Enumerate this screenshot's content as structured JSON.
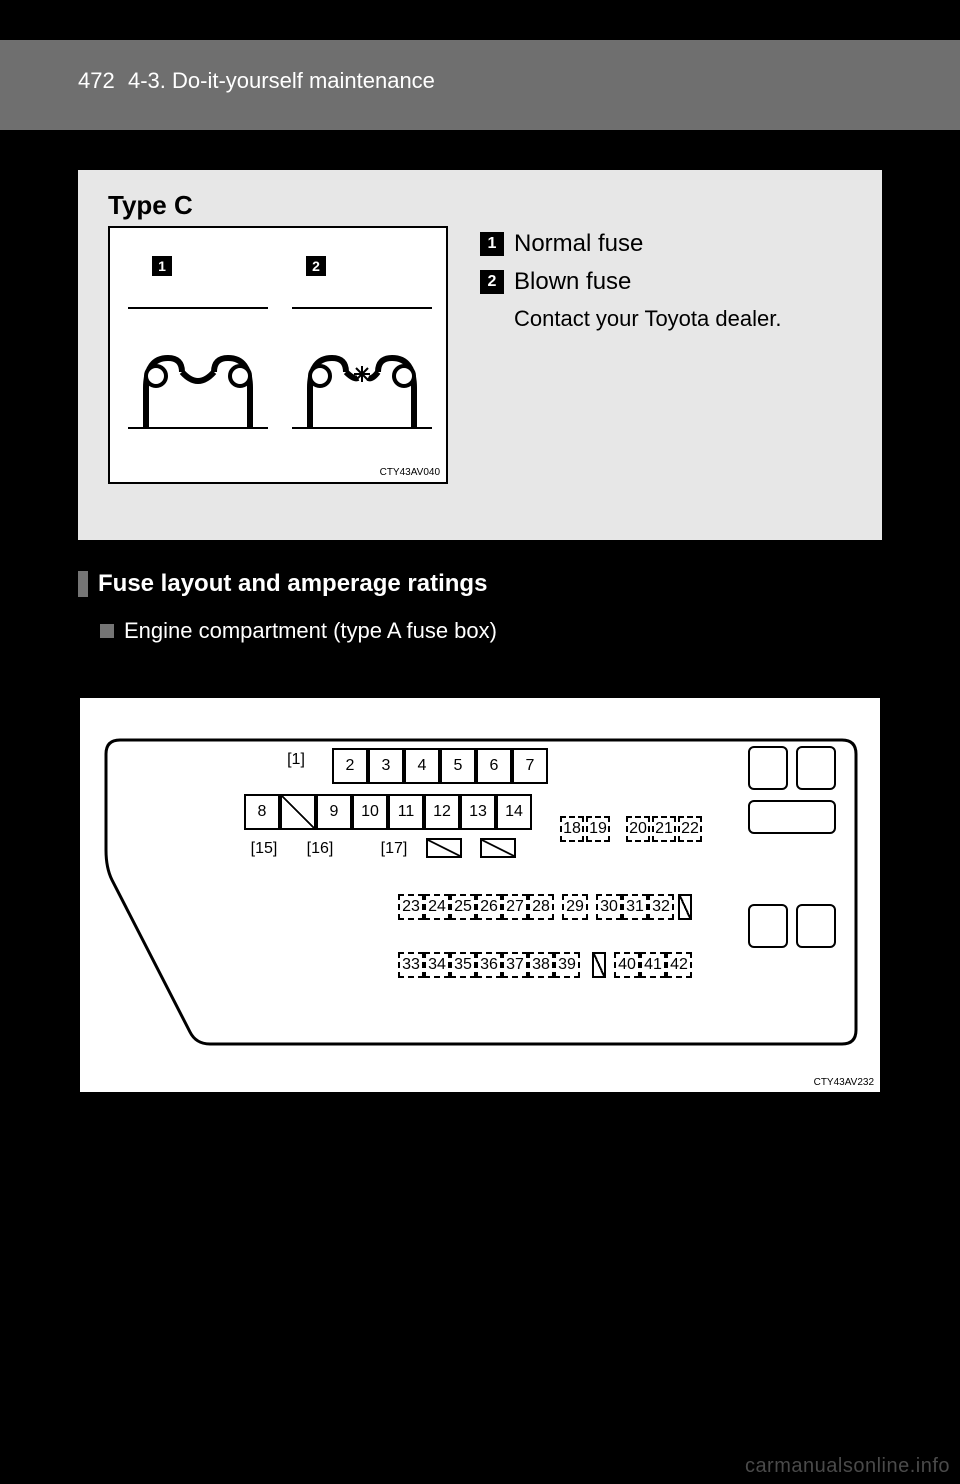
{
  "header": {
    "page_number": "472",
    "section": "4-3. Do-it-yourself maintenance"
  },
  "typec": {
    "title": "Type C",
    "image_code": "CTY43AV040",
    "badges": {
      "one": "1",
      "two": "2"
    },
    "legend": {
      "row1": {
        "badge": "1",
        "text": "Normal fuse"
      },
      "row2": {
        "badge": "2",
        "text": "Blown fuse"
      },
      "note": "Contact your Toyota dealer."
    }
  },
  "mid": {
    "heading": "Fuse layout and amperage ratings"
  },
  "sub": {
    "heading": "Engine compartment (type A fuse box)"
  },
  "fusebox": {
    "image_code": "CTY43AV232",
    "brackets": {
      "b1": "1",
      "b15": "15",
      "b16": "16",
      "b17": "17"
    },
    "row_top": [
      "2",
      "3",
      "4",
      "5",
      "6",
      "7"
    ],
    "row_mid_left": "8",
    "row_mid": [
      "9",
      "10",
      "11",
      "12",
      "13",
      "14"
    ],
    "row_18_22": [
      "18",
      "19",
      "20",
      "21",
      "22"
    ],
    "row_23_32": [
      "23",
      "24",
      "25",
      "26",
      "27",
      "28",
      "29",
      "30",
      "31",
      "32"
    ],
    "row_33_42": [
      "33",
      "34",
      "35",
      "36",
      "37",
      "38",
      "39",
      "40",
      "41",
      "42"
    ]
  },
  "colors": {
    "page_bg": "#000000",
    "band": "#6f6f6f",
    "panel": "#e7e7e7",
    "line": "#000000"
  },
  "watermark": "carmanualsonline.info"
}
